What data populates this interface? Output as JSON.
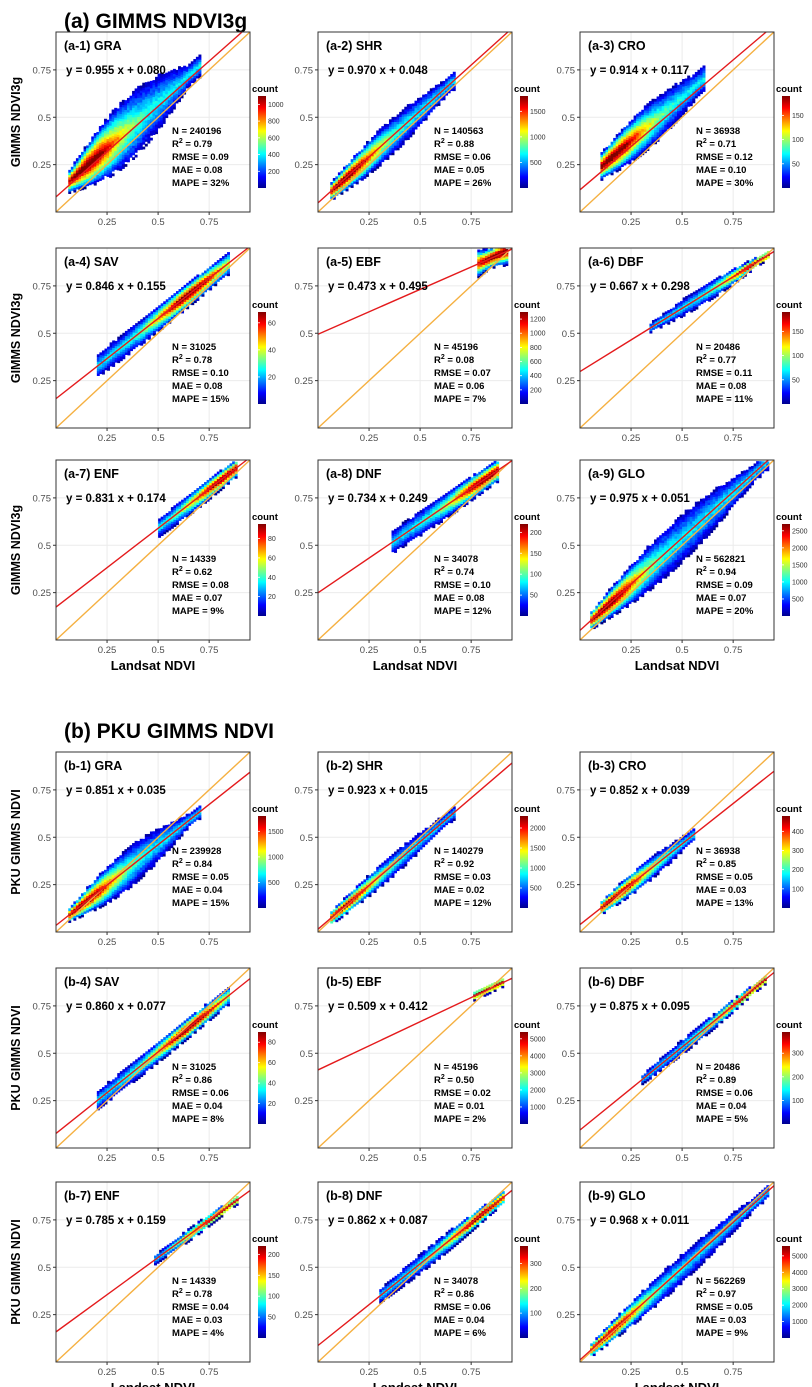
{
  "sections": [
    {
      "title": "(a) GIMMS NDVI3g",
      "ylabel": "GIMMS NDVI3g"
    },
    {
      "title": "(b) PKU GIMMS NDVI",
      "ylabel": "PKU GIMMS NDVI"
    }
  ],
  "xlabel": "Landsat NDVI",
  "colorbar_title": "count",
  "tick_labels": [
    "0.25",
    "0.5",
    "0.75"
  ],
  "colors": {
    "fit_line": "#e41a1c",
    "one_to_one": "#f5b041",
    "grid": "#ebebeb",
    "frame": "#333333"
  },
  "chart_data": [
    {
      "type": "heatmap",
      "section": 0,
      "title": "(a-1) GRA",
      "equation": "y = 0.955 x + 0.080",
      "slope": 0.955,
      "intercept": 0.08,
      "N": "N = 240196",
      "R2_value": "0.79",
      "RMSE": "RMSE = 0.09",
      "MAE": "MAE = 0.08",
      "MAPE": "MAPE = 32%",
      "colorbar_ticks": [
        "200",
        "400",
        "600",
        "800",
        "1000"
      ],
      "colorbar_values": [
        200,
        400,
        600,
        800,
        1000
      ],
      "colorbar_max": 1100,
      "xlim": [
        0,
        0.95
      ],
      "ylim": [
        0,
        0.95
      ],
      "cloud": {
        "x0": 0.06,
        "x1": 0.7,
        "c": 0.02,
        "w0": 0.05,
        "w1": 0.2,
        "hot": 0.14
      }
    },
    {
      "type": "heatmap",
      "section": 0,
      "title": "(a-2) SHR",
      "equation": "y = 0.970 x + 0.048",
      "slope": 0.97,
      "intercept": 0.048,
      "N": "N = 140563",
      "R2_value": "0.88",
      "RMSE": "RMSE = 0.06",
      "MAE": "MAE = 0.05",
      "MAPE": "MAPE = 26%",
      "colorbar_ticks": [
        "500",
        "1000",
        "1500"
      ],
      "colorbar_values": [
        500,
        1000,
        1500
      ],
      "colorbar_max": 1800,
      "xlim": [
        0,
        0.95
      ],
      "ylim": [
        0,
        0.95
      ],
      "cloud": {
        "x0": 0.06,
        "x1": 0.66,
        "c": 0.0,
        "w0": 0.04,
        "w1": 0.1,
        "hot": 0.12
      }
    },
    {
      "type": "heatmap",
      "section": 0,
      "title": "(a-3) CRO",
      "equation": "y = 0.914 x + 0.117",
      "slope": 0.914,
      "intercept": 0.117,
      "N": "N = 36938",
      "R2_value": "0.71",
      "RMSE": "RMSE = 0.12",
      "MAE": "MAE = 0.10",
      "MAPE": "MAPE = 30%",
      "colorbar_ticks": [
        "50",
        "100",
        "150"
      ],
      "colorbar_values": [
        50,
        100,
        150
      ],
      "colorbar_max": 190,
      "xlim": [
        0,
        0.95
      ],
      "ylim": [
        0,
        0.95
      ],
      "cloud": {
        "x0": 0.1,
        "x1": 0.6,
        "c": 0.03,
        "w0": 0.06,
        "w1": 0.12,
        "hot": 0.15
      }
    },
    {
      "type": "heatmap",
      "section": 0,
      "title": "(a-4) SAV",
      "equation": "y = 0.846 x + 0.155",
      "slope": 0.846,
      "intercept": 0.155,
      "N": "N = 31025",
      "R2_value": "0.78",
      "RMSE": "RMSE = 0.10",
      "MAE": "MAE = 0.08",
      "MAPE": "MAPE = 15%",
      "colorbar_ticks": [
        "20",
        "40",
        "60"
      ],
      "colorbar_values": [
        20,
        40,
        60
      ],
      "colorbar_max": 68,
      "xlim": [
        0,
        0.95
      ],
      "ylim": [
        0,
        0.95
      ],
      "cloud": {
        "x0": 0.2,
        "x1": 0.84,
        "c": 0.0,
        "w0": 0.05,
        "w1": 0.06,
        "hot": 0.65
      }
    },
    {
      "type": "heatmap",
      "section": 0,
      "title": "(a-5) EBF",
      "equation": "y = 0.473 x + 0.495",
      "slope": 0.473,
      "intercept": 0.495,
      "N": "N = 45196",
      "R2_value": "0.08",
      "RMSE": "RMSE = 0.07",
      "MAE": "MAE = 0.06",
      "MAPE": "MAPE = 7%",
      "colorbar_ticks": [
        "200",
        "400",
        "600",
        "800",
        "1000",
        "1200"
      ],
      "colorbar_values": [
        200,
        400,
        600,
        800,
        1000,
        1200
      ],
      "colorbar_max": 1300,
      "xlim": [
        0,
        0.95
      ],
      "ylim": [
        0,
        0.95
      ],
      "cloud": {
        "x0": 0.78,
        "x1": 0.92,
        "c": 0.0,
        "w0": 0.06,
        "w1": 0.04,
        "hot": 0.87
      }
    },
    {
      "type": "heatmap",
      "section": 0,
      "title": "(a-6) DBF",
      "equation": "y = 0.667 x + 0.298",
      "slope": 0.667,
      "intercept": 0.298,
      "N": "N = 20486",
      "R2_value": "0.77",
      "RMSE": "RMSE = 0.11",
      "MAE": "MAE = 0.08",
      "MAPE": "MAPE = 11%",
      "colorbar_ticks": [
        "50",
        "100",
        "150"
      ],
      "colorbar_values": [
        50,
        100,
        150
      ],
      "colorbar_max": 190,
      "xlim": [
        0,
        0.95
      ],
      "ylim": [
        0,
        0.95
      ],
      "cloud": {
        "x0": 0.34,
        "x1": 0.92,
        "c": 0.0,
        "w0": 0.02,
        "w1": 0.05,
        "hot": 0.88
      }
    },
    {
      "type": "heatmap",
      "section": 0,
      "title": "(a-7) ENF",
      "equation": "y = 0.831 x + 0.174",
      "slope": 0.831,
      "intercept": 0.174,
      "N": "N = 14339",
      "R2_value": "0.62",
      "RMSE": "RMSE = 0.08",
      "MAE": "MAE = 0.07",
      "MAPE": "MAPE = 9%",
      "colorbar_ticks": [
        "20",
        "40",
        "60",
        "80"
      ],
      "colorbar_values": [
        20,
        40,
        60,
        80
      ],
      "colorbar_max": 95,
      "xlim": [
        0,
        0.95
      ],
      "ylim": [
        0,
        0.95
      ],
      "cloud": {
        "x0": 0.5,
        "x1": 0.88,
        "c": 0.0,
        "w0": 0.04,
        "w1": 0.05,
        "hot": 0.82
      }
    },
    {
      "type": "heatmap",
      "section": 0,
      "title": "(a-8) DNF",
      "equation": "y = 0.734 x + 0.249",
      "slope": 0.734,
      "intercept": 0.249,
      "N": "N = 34078",
      "R2_value": "0.74",
      "RMSE": "RMSE = 0.10",
      "MAE": "MAE = 0.08",
      "MAPE": "MAPE = 12%",
      "colorbar_ticks": [
        "50",
        "100",
        "150",
        "200"
      ],
      "colorbar_values": [
        50,
        100,
        150,
        200
      ],
      "colorbar_max": 220,
      "xlim": [
        0,
        0.95
      ],
      "ylim": [
        0,
        0.95
      ],
      "cloud": {
        "x0": 0.36,
        "x1": 0.88,
        "c": 0.0,
        "w0": 0.05,
        "w1": 0.06,
        "hot": 0.82
      }
    },
    {
      "type": "heatmap",
      "section": 0,
      "title": "(a-9) GLO",
      "equation": "y = 0.975 x + 0.051",
      "slope": 0.975,
      "intercept": 0.051,
      "N": "N = 562821",
      "R2_value": "0.94",
      "RMSE": "RMSE = 0.09",
      "MAE": "MAE = 0.07",
      "MAPE": "MAPE = 20%",
      "colorbar_ticks": [
        "500",
        "1000",
        "1500",
        "2000",
        "2500"
      ],
      "colorbar_values": [
        500,
        1000,
        1500,
        2000,
        2500
      ],
      "colorbar_max": 2700,
      "xlim": [
        0,
        0.95
      ],
      "ylim": [
        0,
        0.95
      ],
      "cloud": {
        "x0": 0.05,
        "x1": 0.92,
        "c": 0.0,
        "w0": 0.04,
        "w1": 0.14,
        "hot": 0.12
      }
    },
    {
      "type": "heatmap",
      "section": 1,
      "title": "(b-1) GRA",
      "equation": "y = 0.851 x + 0.035",
      "slope": 0.851,
      "intercept": 0.035,
      "N": "N = 239928",
      "R2_value": "0.84",
      "RMSE": "RMSE = 0.05",
      "MAE": "MAE = 0.04",
      "MAPE": "MAPE = 15%",
      "colorbar_ticks": [
        "500",
        "1000",
        "1500"
      ],
      "colorbar_values": [
        500,
        1000,
        1500
      ],
      "colorbar_max": 1800,
      "xlim": [
        0,
        0.95
      ],
      "ylim": [
        0,
        0.95
      ],
      "cloud": {
        "x0": 0.06,
        "x1": 0.7,
        "c": 0.0,
        "w0": 0.03,
        "w1": 0.12,
        "hot": 0.12
      }
    },
    {
      "type": "heatmap",
      "section": 1,
      "title": "(b-2) SHR",
      "equation": "y = 0.923 x + 0.015",
      "slope": 0.923,
      "intercept": 0.015,
      "N": "N = 140279",
      "R2_value": "0.92",
      "RMSE": "RMSE = 0.03",
      "MAE": "MAE = 0.02",
      "MAPE": "MAPE = 12%",
      "colorbar_ticks": [
        "500",
        "1000",
        "1500",
        "2000"
      ],
      "colorbar_values": [
        500,
        1000,
        1500,
        2000
      ],
      "colorbar_max": 2300,
      "xlim": [
        0,
        0.95
      ],
      "ylim": [
        0,
        0.95
      ],
      "cloud": {
        "x0": 0.06,
        "x1": 0.66,
        "c": 0.0,
        "w0": 0.03,
        "w1": 0.06,
        "hot": 0.1
      }
    },
    {
      "type": "heatmap",
      "section": 1,
      "title": "(b-3) CRO",
      "equation": "y = 0.852 x + 0.039",
      "slope": 0.852,
      "intercept": 0.039,
      "N": "N = 36938",
      "R2_value": "0.85",
      "RMSE": "RMSE = 0.05",
      "MAE": "MAE = 0.03",
      "MAPE": "MAPE = 13%",
      "colorbar_ticks": [
        "100",
        "200",
        "300",
        "400"
      ],
      "colorbar_values": [
        100,
        200,
        300,
        400
      ],
      "colorbar_max": 480,
      "xlim": [
        0,
        0.95
      ],
      "ylim": [
        0,
        0.95
      ],
      "cloud": {
        "x0": 0.1,
        "x1": 0.56,
        "c": 0.0,
        "w0": 0.03,
        "w1": 0.06,
        "hot": 0.16
      }
    },
    {
      "type": "heatmap",
      "section": 1,
      "title": "(b-4) SAV",
      "equation": "y = 0.860 x + 0.077",
      "slope": 0.86,
      "intercept": 0.077,
      "N": "N = 31025",
      "R2_value": "0.86",
      "RMSE": "RMSE = 0.06",
      "MAE": "MAE = 0.04",
      "MAPE": "MAPE = 8%",
      "colorbar_ticks": [
        "20",
        "40",
        "60",
        "80"
      ],
      "colorbar_values": [
        20,
        40,
        60,
        80
      ],
      "colorbar_max": 90,
      "xlim": [
        0,
        0.95
      ],
      "ylim": [
        0,
        0.95
      ],
      "cloud": {
        "x0": 0.2,
        "x1": 0.84,
        "c": 0.0,
        "w0": 0.04,
        "w1": 0.05,
        "hot": 0.65
      }
    },
    {
      "type": "heatmap",
      "section": 1,
      "title": "(b-5) EBF",
      "equation": "y = 0.509 x + 0.412",
      "slope": 0.509,
      "intercept": 0.412,
      "N": "N = 45196",
      "R2_value": "0.50",
      "RMSE": "RMSE = 0.02",
      "MAE": "MAE = 0.01",
      "MAPE": "MAPE = 2%",
      "colorbar_ticks": [
        "1000",
        "2000",
        "3000",
        "4000",
        "5000"
      ],
      "colorbar_values": [
        1000,
        2000,
        3000,
        4000,
        5000
      ],
      "colorbar_max": 5400,
      "xlim": [
        0,
        0.95
      ],
      "ylim": [
        0,
        0.95
      ],
      "cloud": {
        "x0": 0.76,
        "x1": 0.9,
        "c": 0.0,
        "w0": 0.02,
        "w1": 0.02,
        "hot": 0.84
      }
    },
    {
      "type": "heatmap",
      "section": 1,
      "title": "(b-6) DBF",
      "equation": "y = 0.875 x + 0.095",
      "slope": 0.875,
      "intercept": 0.095,
      "N": "N = 20486",
      "R2_value": "0.89",
      "RMSE": "RMSE = 0.06",
      "MAE": "MAE = 0.04",
      "MAPE": "MAPE = 5%",
      "colorbar_ticks": [
        "100",
        "200",
        "300"
      ],
      "colorbar_values": [
        100,
        200,
        300
      ],
      "colorbar_max": 390,
      "xlim": [
        0,
        0.95
      ],
      "ylim": [
        0,
        0.95
      ],
      "cloud": {
        "x0": 0.3,
        "x1": 0.9,
        "c": 0.0,
        "w0": 0.02,
        "w1": 0.04,
        "hot": 0.84
      }
    },
    {
      "type": "heatmap",
      "section": 1,
      "title": "(b-7) ENF",
      "equation": "y = 0.785 x + 0.159",
      "slope": 0.785,
      "intercept": 0.159,
      "N": "N = 14339",
      "R2_value": "0.78",
      "RMSE": "RMSE = 0.04",
      "MAE": "MAE = 0.03",
      "MAPE": "MAPE = 4%",
      "colorbar_ticks": [
        "50",
        "100",
        "150",
        "200"
      ],
      "colorbar_values": [
        50,
        100,
        150,
        200
      ],
      "colorbar_max": 220,
      "xlim": [
        0,
        0.95
      ],
      "ylim": [
        0,
        0.95
      ],
      "cloud": {
        "x0": 0.48,
        "x1": 0.88,
        "c": 0.0,
        "w0": 0.02,
        "w1": 0.03,
        "hot": 0.8
      }
    },
    {
      "type": "heatmap",
      "section": 1,
      "title": "(b-8) DNF",
      "equation": "y = 0.862 x + 0.087",
      "slope": 0.862,
      "intercept": 0.087,
      "N": "N = 34078",
      "R2_value": "0.86",
      "RMSE": "RMSE = 0.06",
      "MAE": "MAE = 0.04",
      "MAPE": "MAPE = 6%",
      "colorbar_ticks": [
        "100",
        "200",
        "300"
      ],
      "colorbar_values": [
        100,
        200,
        300
      ],
      "colorbar_max": 370,
      "xlim": [
        0,
        0.95
      ],
      "ylim": [
        0,
        0.95
      ],
      "cloud": {
        "x0": 0.3,
        "x1": 0.9,
        "c": 0.0,
        "w0": 0.03,
        "w1": 0.05,
        "hot": 0.8
      }
    },
    {
      "type": "heatmap",
      "section": 1,
      "title": "(b-9) GLO",
      "equation": "y = 0.968 x + 0.011",
      "slope": 0.968,
      "intercept": 0.011,
      "N": "N = 562269",
      "R2_value": "0.97",
      "RMSE": "RMSE = 0.05",
      "MAE": "MAE = 0.03",
      "MAPE": "MAPE = 9%",
      "colorbar_ticks": [
        "1000",
        "2000",
        "3000",
        "4000",
        "5000"
      ],
      "colorbar_values": [
        1000,
        2000,
        3000,
        4000,
        5000
      ],
      "colorbar_max": 5600,
      "xlim": [
        0,
        0.95
      ],
      "ylim": [
        0,
        0.95
      ],
      "cloud": {
        "x0": 0.05,
        "x1": 0.92,
        "c": 0.0,
        "w0": 0.03,
        "w1": 0.08,
        "hot": 0.12
      }
    }
  ]
}
